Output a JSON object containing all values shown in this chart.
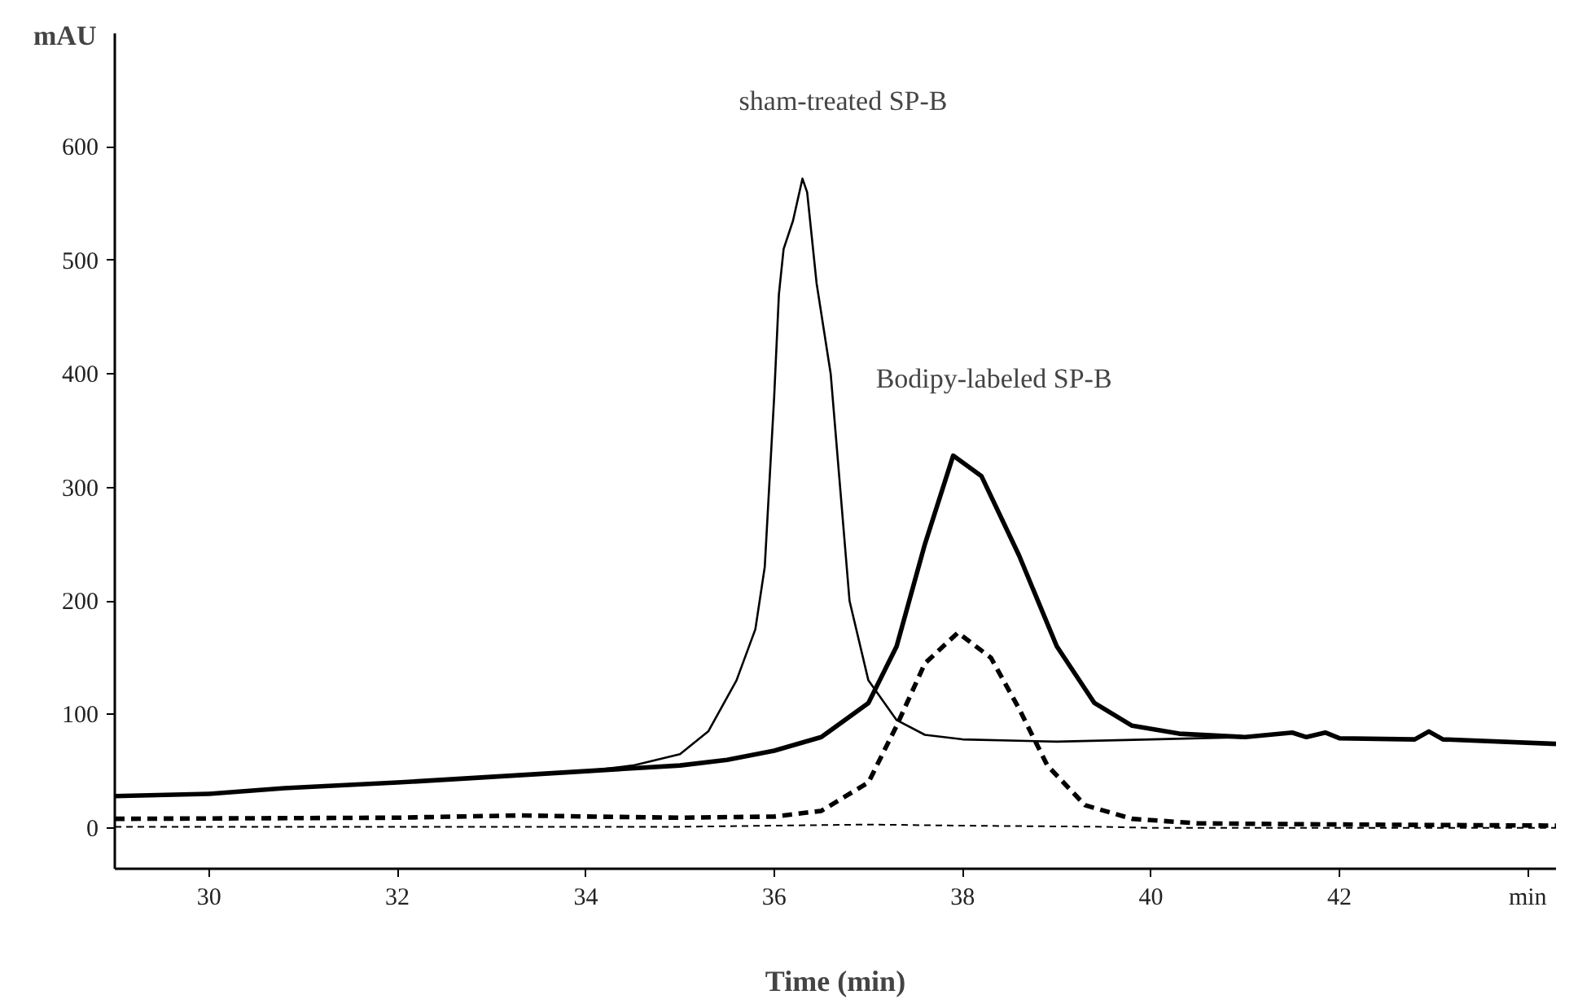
{
  "chart_data": {
    "type": "line",
    "xlabel": "Time (min)",
    "ylabel": "mAU",
    "xlim": [
      29,
      44.3
    ],
    "ylim": [
      -36,
      700
    ],
    "xticks": [
      30,
      32,
      34,
      36,
      38,
      40,
      42,
      {
        "value": 44,
        "label": "min"
      }
    ],
    "yticks": [
      0,
      100,
      200,
      300,
      400,
      500,
      600
    ],
    "grid": false,
    "annotations": [
      "sham-treated SP-B",
      "Bodipy-labeled SP-B"
    ],
    "series": [
      {
        "color": "#000000",
        "line_style": "solid",
        "x": [
          29.0,
          30,
          30.8,
          32,
          33,
          34,
          34.5,
          35,
          35.3,
          35.6,
          35.8,
          35.9,
          36.0,
          36.05,
          36.1,
          36.2,
          36.3,
          36.35,
          36.45,
          36.6,
          36.7,
          36.8,
          37.0,
          37.3,
          37.6,
          38,
          39,
          40,
          41,
          41.5,
          41.65,
          41.85,
          42,
          42.8,
          42.95,
          43.1,
          44.3
        ],
        "values": [
          28,
          30,
          35,
          40,
          45,
          50,
          55,
          65,
          85,
          130,
          175,
          230,
          380,
          470,
          510,
          535,
          572,
          560,
          480,
          400,
          300,
          200,
          130,
          95,
          82,
          78,
          76,
          78,
          80,
          84,
          80,
          84,
          79,
          78,
          85,
          78,
          74
        ]
      },
      {
        "color": "#000000",
        "line_style": "solid",
        "x": [
          29,
          30,
          30.8,
          32,
          33,
          34,
          35,
          35.5,
          36,
          36.5,
          37,
          37.3,
          37.6,
          37.9,
          38.2,
          38.6,
          39.0,
          39.4,
          39.8,
          40.3,
          41,
          41.5,
          41.65,
          41.85,
          42,
          42.8,
          42.95,
          43.1,
          44.3
        ],
        "values": [
          28,
          30,
          35,
          40,
          45,
          50,
          55,
          60,
          68,
          80,
          110,
          160,
          250,
          328,
          310,
          240,
          160,
          110,
          90,
          83,
          80,
          84,
          80,
          84,
          79,
          78,
          85,
          78,
          74
        ]
      },
      {
        "color": "#000000",
        "line_style": "dashed",
        "x": [
          29,
          32,
          33.3,
          34,
          35,
          36,
          36.5,
          37,
          37.3,
          37.6,
          37.95,
          38.3,
          38.6,
          38.9,
          39.3,
          39.8,
          40.5,
          42,
          44.3
        ],
        "values": [
          8,
          9,
          11,
          10,
          9,
          10,
          15,
          40,
          90,
          145,
          172,
          150,
          105,
          55,
          20,
          8,
          4,
          3,
          2
        ]
      },
      {
        "color": "#000000",
        "line_style": "dashed",
        "x": [
          29,
          35,
          36,
          37,
          38,
          39.5,
          40,
          44.3
        ],
        "values": [
          1,
          1,
          2,
          3,
          2,
          1,
          0,
          0
        ]
      }
    ]
  }
}
